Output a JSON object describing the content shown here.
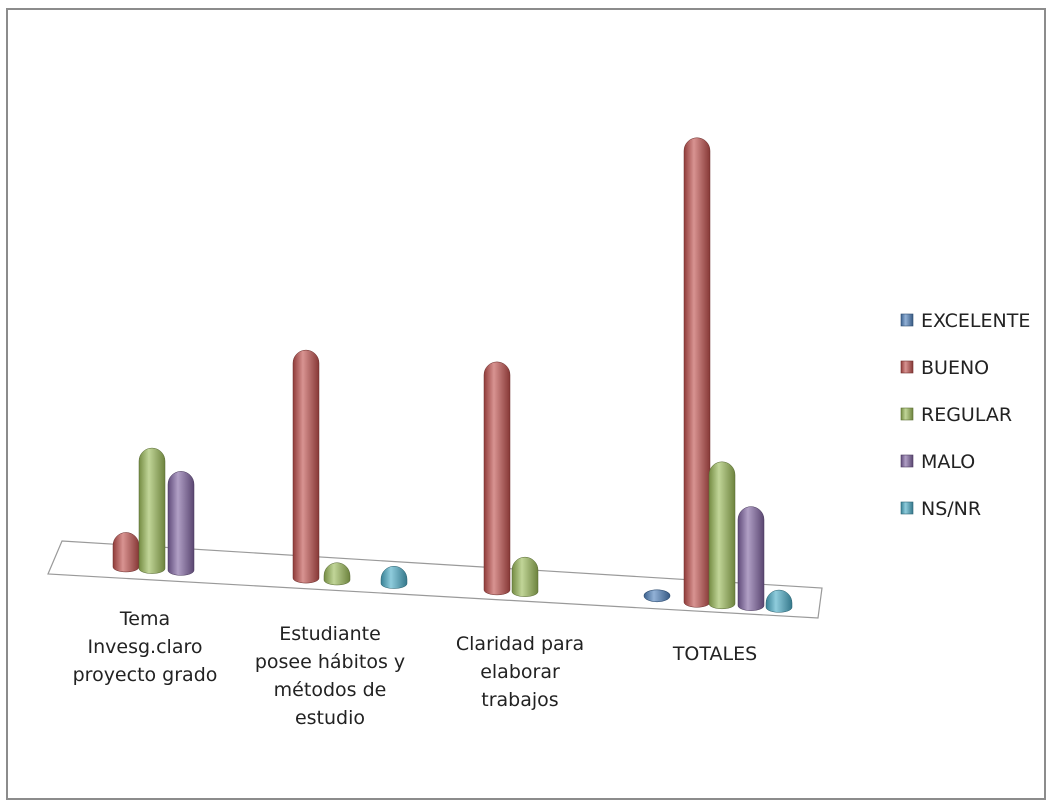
{
  "chart_data": {
    "type": "bar",
    "style": "3d-cylinder",
    "categories": [
      [
        "Tema",
        "Invesg.claro",
        "proyecto grado"
      ],
      [
        "Estudiante",
        "posee hábitos y",
        "métodos  de",
        "estudio"
      ],
      [
        "Claridad para",
        "elaborar",
        "trabajos"
      ],
      [
        "TOTALES"
      ]
    ],
    "series": [
      {
        "name": "EXCELENTE",
        "color": "#4f81bd",
        "values": [
          0,
          0,
          0,
          0
        ]
      },
      {
        "name": "BUENO",
        "color": "#c0504d",
        "values": [
          1,
          10,
          10,
          21
        ]
      },
      {
        "name": "REGULAR",
        "color": "#9bbb59",
        "values": [
          5,
          0.2,
          1,
          6
        ]
      },
      {
        "name": "MALO",
        "color": "#8064a2",
        "values": [
          4,
          0,
          0,
          4
        ]
      },
      {
        "name": "NS/NR",
        "color": "#4bacc6",
        "values": [
          0,
          0.2,
          0,
          0.2
        ]
      }
    ],
    "legend_position": "right",
    "grid": false
  }
}
